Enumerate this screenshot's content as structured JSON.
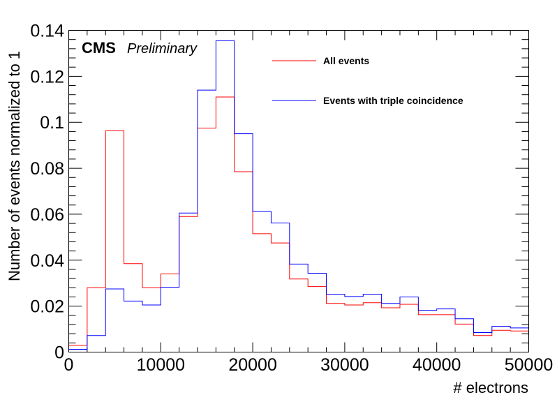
{
  "chart_data": {
    "type": "histogram",
    "xlabel": "# electrons",
    "ylabel": "Number of events normalized to 1",
    "xlim": [
      0,
      50000
    ],
    "ylim": [
      0,
      0.14
    ],
    "x_ticks": [
      "0",
      "10000",
      "20000",
      "30000",
      "40000",
      "50000"
    ],
    "y_ticks": [
      "0",
      "0.02",
      "0.04",
      "0.06",
      "0.08",
      "0.1",
      "0.12",
      "0.14"
    ],
    "bin_edges": [
      0,
      2000,
      4000,
      6000,
      8000,
      10000,
      12000,
      14000,
      16000,
      18000,
      20000,
      22000,
      24000,
      26000,
      28000,
      30000,
      32000,
      34000,
      36000,
      38000,
      40000,
      42000,
      44000,
      46000,
      48000,
      50000
    ],
    "series": [
      {
        "name": "All events",
        "color": "#ff0000",
        "values": [
          0.003,
          0.028,
          0.0963,
          0.0385,
          0.028,
          0.034,
          0.059,
          0.0975,
          0.111,
          0.0785,
          0.0515,
          0.0475,
          0.0318,
          0.0285,
          0.0212,
          0.0205,
          0.0215,
          0.0193,
          0.0208,
          0.0163,
          0.0163,
          0.0122,
          0.0072,
          0.0095,
          0.0092
        ]
      },
      {
        "name": "Events with triple coincidence",
        "color": "#0000ff",
        "values": [
          0.0012,
          0.0072,
          0.0275,
          0.0222,
          0.0205,
          0.0282,
          0.0605,
          0.114,
          0.1355,
          0.095,
          0.0612,
          0.0562,
          0.0383,
          0.0343,
          0.0252,
          0.0242,
          0.0252,
          0.0212,
          0.024,
          0.0182,
          0.0188,
          0.0145,
          0.0085,
          0.0112,
          0.0105
        ]
      }
    ],
    "annotation_bold": "CMS",
    "annotation_italic": "Preliminary",
    "legend_position": "top-right",
    "grid": false
  }
}
